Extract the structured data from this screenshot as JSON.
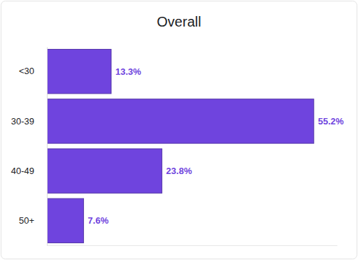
{
  "chart_data": {
    "type": "bar",
    "title": "Overall",
    "orientation": "horizontal",
    "categories": [
      "<30",
      "30-39",
      "40-49",
      "50+"
    ],
    "values": [
      13.3,
      55.2,
      23.8,
      7.6
    ],
    "value_labels": [
      "13.3%",
      "55.2%",
      "23.8%",
      "7.6%"
    ],
    "color": "#6f44de",
    "xlim": [
      0,
      60
    ],
    "data_labels": true,
    "tick_labels": "y"
  }
}
